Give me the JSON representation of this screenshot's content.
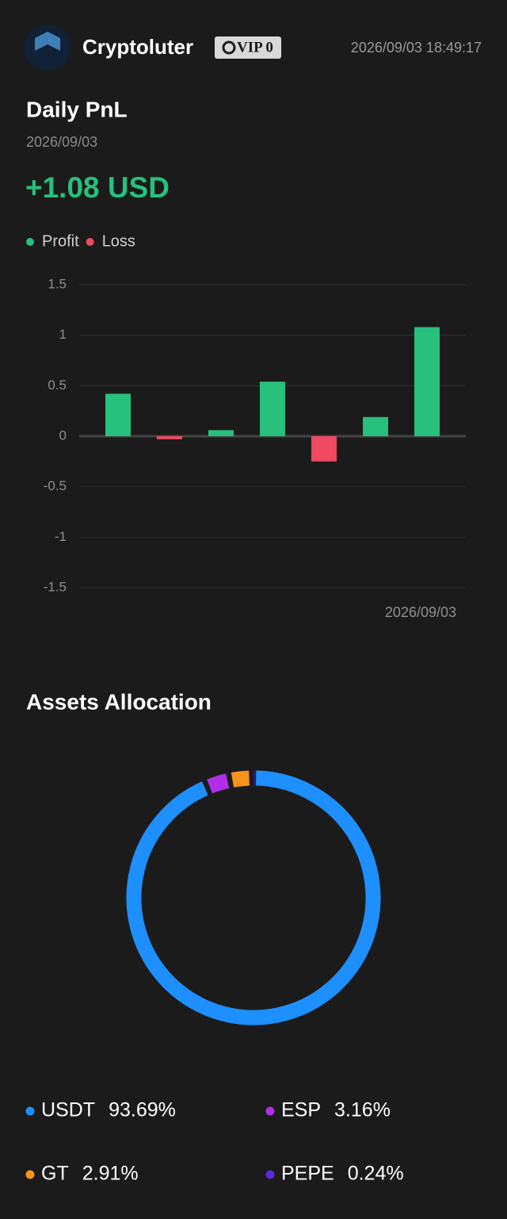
{
  "header": {
    "name": "Cryptoluter",
    "badge": "VIP 0",
    "timestamp": "2026/09/03 18:49:17"
  },
  "pnl": {
    "title": "Daily PnL",
    "date": "2026/09/03",
    "total": "+1.08 USD"
  },
  "chart_data": [
    {
      "type": "bar",
      "legend": [
        {
          "name": "Profit",
          "color": "#27c07d"
        },
        {
          "name": "Loss",
          "color": "#f04a60"
        }
      ],
      "categories": [
        null,
        null,
        null,
        null,
        null,
        null,
        "2026/09/03"
      ],
      "values": [
        0.42,
        -0.03,
        0.06,
        0.54,
        -0.25,
        0.19,
        1.08
      ],
      "positive_color": "#27c07d",
      "negative_color": "#f04a60",
      "ylim": [
        -1.5,
        1.5
      ],
      "yticks": [
        1.5,
        1,
        0.5,
        0,
        -0.5,
        -1,
        -1.5
      ],
      "grid": true
    },
    {
      "type": "pie",
      "title": "Assets Allocation",
      "categories": [
        "USDT",
        "ESP",
        "GT",
        "PEPE"
      ],
      "values": [
        93.69,
        3.16,
        2.91,
        0.24
      ],
      "value_labels": [
        "93.69%",
        "3.16%",
        "2.91%",
        "0.24%"
      ],
      "colors": [
        "#1e8fff",
        "#b12ee6",
        "#f7931a",
        "#5b2be0"
      ]
    }
  ]
}
